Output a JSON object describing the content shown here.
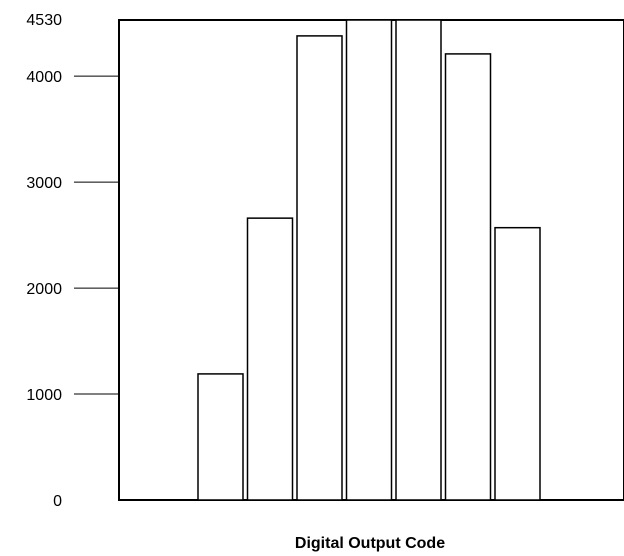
{
  "chart_data": {
    "type": "bar",
    "title": "",
    "xlabel": "Digital Output Code",
    "ylabel": "",
    "ylim": [
      0,
      4530
    ],
    "yticks": [
      0,
      1000,
      2000,
      3000,
      4000,
      4530
    ],
    "grid": false,
    "legend": "none",
    "values": [
      1190,
      2660,
      4380,
      4530,
      4530,
      4210,
      2570
    ],
    "colors": {
      "bar_fill": "#ffffff",
      "bar_stroke": "#000000",
      "axis": "#000000",
      "background": "#ffffff"
    }
  }
}
